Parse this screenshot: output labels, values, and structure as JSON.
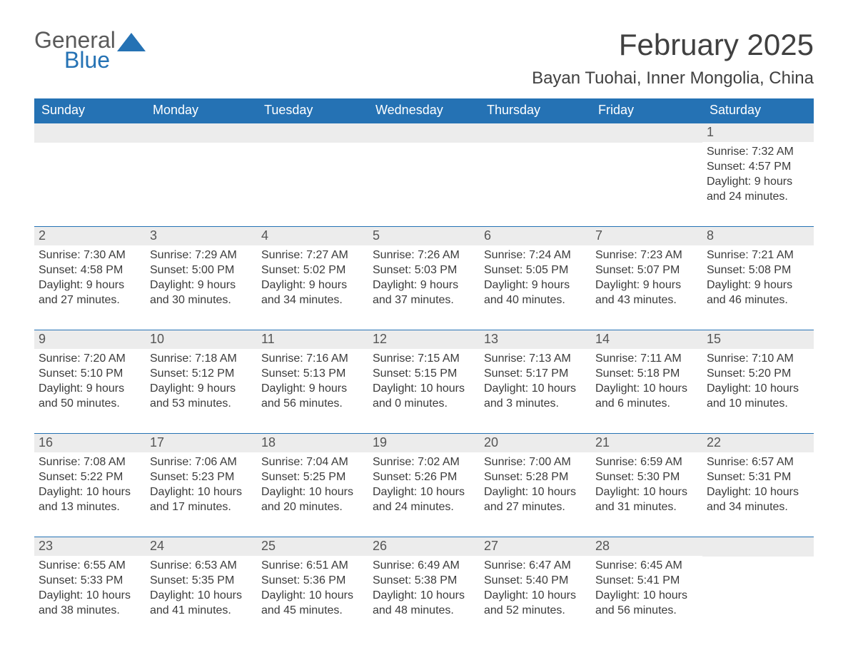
{
  "logo": {
    "general": "General",
    "blue": "Blue"
  },
  "title": "February 2025",
  "location": "Bayan Tuohai, Inner Mongolia, China",
  "colors": {
    "header_bg": "#2572b4",
    "header_text": "#ffffff",
    "daynum_bg": "#ececec",
    "body_text": "#3b3b3b",
    "rule": "#2572b4"
  },
  "days_of_week": [
    "Sunday",
    "Monday",
    "Tuesday",
    "Wednesday",
    "Thursday",
    "Friday",
    "Saturday"
  ],
  "weeks": [
    [
      null,
      null,
      null,
      null,
      null,
      null,
      {
        "n": "1",
        "sunrise": "7:32 AM",
        "sunset": "4:57 PM",
        "daylight": "9 hours and 24 minutes."
      }
    ],
    [
      {
        "n": "2",
        "sunrise": "7:30 AM",
        "sunset": "4:58 PM",
        "daylight": "9 hours and 27 minutes."
      },
      {
        "n": "3",
        "sunrise": "7:29 AM",
        "sunset": "5:00 PM",
        "daylight": "9 hours and 30 minutes."
      },
      {
        "n": "4",
        "sunrise": "7:27 AM",
        "sunset": "5:02 PM",
        "daylight": "9 hours and 34 minutes."
      },
      {
        "n": "5",
        "sunrise": "7:26 AM",
        "sunset": "5:03 PM",
        "daylight": "9 hours and 37 minutes."
      },
      {
        "n": "6",
        "sunrise": "7:24 AM",
        "sunset": "5:05 PM",
        "daylight": "9 hours and 40 minutes."
      },
      {
        "n": "7",
        "sunrise": "7:23 AM",
        "sunset": "5:07 PM",
        "daylight": "9 hours and 43 minutes."
      },
      {
        "n": "8",
        "sunrise": "7:21 AM",
        "sunset": "5:08 PM",
        "daylight": "9 hours and 46 minutes."
      }
    ],
    [
      {
        "n": "9",
        "sunrise": "7:20 AM",
        "sunset": "5:10 PM",
        "daylight": "9 hours and 50 minutes."
      },
      {
        "n": "10",
        "sunrise": "7:18 AM",
        "sunset": "5:12 PM",
        "daylight": "9 hours and 53 minutes."
      },
      {
        "n": "11",
        "sunrise": "7:16 AM",
        "sunset": "5:13 PM",
        "daylight": "9 hours and 56 minutes."
      },
      {
        "n": "12",
        "sunrise": "7:15 AM",
        "sunset": "5:15 PM",
        "daylight": "10 hours and 0 minutes."
      },
      {
        "n": "13",
        "sunrise": "7:13 AM",
        "sunset": "5:17 PM",
        "daylight": "10 hours and 3 minutes."
      },
      {
        "n": "14",
        "sunrise": "7:11 AM",
        "sunset": "5:18 PM",
        "daylight": "10 hours and 6 minutes."
      },
      {
        "n": "15",
        "sunrise": "7:10 AM",
        "sunset": "5:20 PM",
        "daylight": "10 hours and 10 minutes."
      }
    ],
    [
      {
        "n": "16",
        "sunrise": "7:08 AM",
        "sunset": "5:22 PM",
        "daylight": "10 hours and 13 minutes."
      },
      {
        "n": "17",
        "sunrise": "7:06 AM",
        "sunset": "5:23 PM",
        "daylight": "10 hours and 17 minutes."
      },
      {
        "n": "18",
        "sunrise": "7:04 AM",
        "sunset": "5:25 PM",
        "daylight": "10 hours and 20 minutes."
      },
      {
        "n": "19",
        "sunrise": "7:02 AM",
        "sunset": "5:26 PM",
        "daylight": "10 hours and 24 minutes."
      },
      {
        "n": "20",
        "sunrise": "7:00 AM",
        "sunset": "5:28 PM",
        "daylight": "10 hours and 27 minutes."
      },
      {
        "n": "21",
        "sunrise": "6:59 AM",
        "sunset": "5:30 PM",
        "daylight": "10 hours and 31 minutes."
      },
      {
        "n": "22",
        "sunrise": "6:57 AM",
        "sunset": "5:31 PM",
        "daylight": "10 hours and 34 minutes."
      }
    ],
    [
      {
        "n": "23",
        "sunrise": "6:55 AM",
        "sunset": "5:33 PM",
        "daylight": "10 hours and 38 minutes."
      },
      {
        "n": "24",
        "sunrise": "6:53 AM",
        "sunset": "5:35 PM",
        "daylight": "10 hours and 41 minutes."
      },
      {
        "n": "25",
        "sunrise": "6:51 AM",
        "sunset": "5:36 PM",
        "daylight": "10 hours and 45 minutes."
      },
      {
        "n": "26",
        "sunrise": "6:49 AM",
        "sunset": "5:38 PM",
        "daylight": "10 hours and 48 minutes."
      },
      {
        "n": "27",
        "sunrise": "6:47 AM",
        "sunset": "5:40 PM",
        "daylight": "10 hours and 52 minutes."
      },
      {
        "n": "28",
        "sunrise": "6:45 AM",
        "sunset": "5:41 PM",
        "daylight": "10 hours and 56 minutes."
      },
      null
    ]
  ],
  "labels": {
    "sunrise": "Sunrise: ",
    "sunset": "Sunset: ",
    "daylight": "Daylight: "
  }
}
